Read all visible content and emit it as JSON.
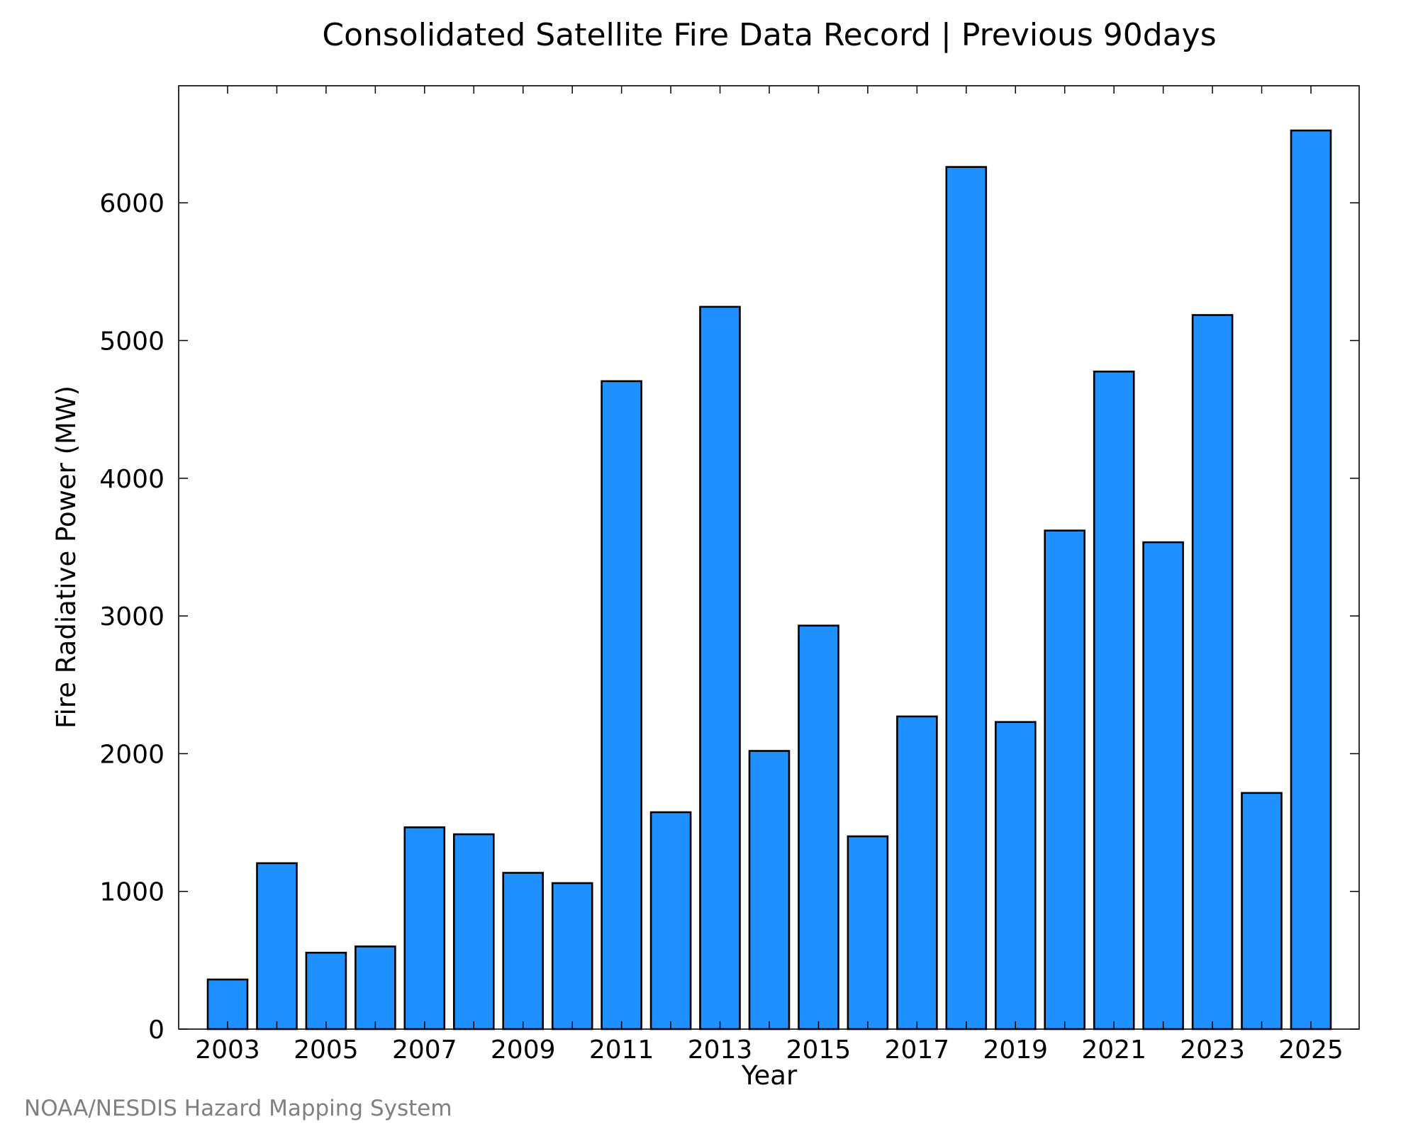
{
  "credit": "NOAA/NESDIS Hazard Mapping System",
  "colors": {
    "bar_fill": "#1E90FF",
    "bar_stroke": "#000000",
    "credit_text": "#808080"
  },
  "chart_data": {
    "type": "bar",
    "title": "Consolidated Satellite Fire Data Record | Previous 90days",
    "xlabel": "Year",
    "ylabel": "Fire Radiative Power (MW)",
    "categories": [
      "2003",
      "2004",
      "2005",
      "2006",
      "2007",
      "2008",
      "2009",
      "2010",
      "2011",
      "2012",
      "2013",
      "2014",
      "2015",
      "2016",
      "2017",
      "2018",
      "2019",
      "2020",
      "2021",
      "2022",
      "2023",
      "2024",
      "2025"
    ],
    "values": [
      360,
      1205,
      555,
      600,
      1465,
      1415,
      1135,
      1060,
      4705,
      1575,
      5245,
      2020,
      2930,
      1400,
      2270,
      6260,
      2230,
      3620,
      4775,
      3535,
      5185,
      1715,
      6525
    ],
    "x_tick_labels": [
      "2003",
      "2005",
      "2007",
      "2009",
      "2011",
      "2013",
      "2015",
      "2017",
      "2019",
      "2021",
      "2023",
      "2025"
    ],
    "y_tick_labels": [
      "0",
      "1000",
      "2000",
      "3000",
      "4000",
      "5000",
      "6000"
    ],
    "ylim": [
      0,
      6850
    ],
    "grid": false,
    "legend": "none"
  }
}
